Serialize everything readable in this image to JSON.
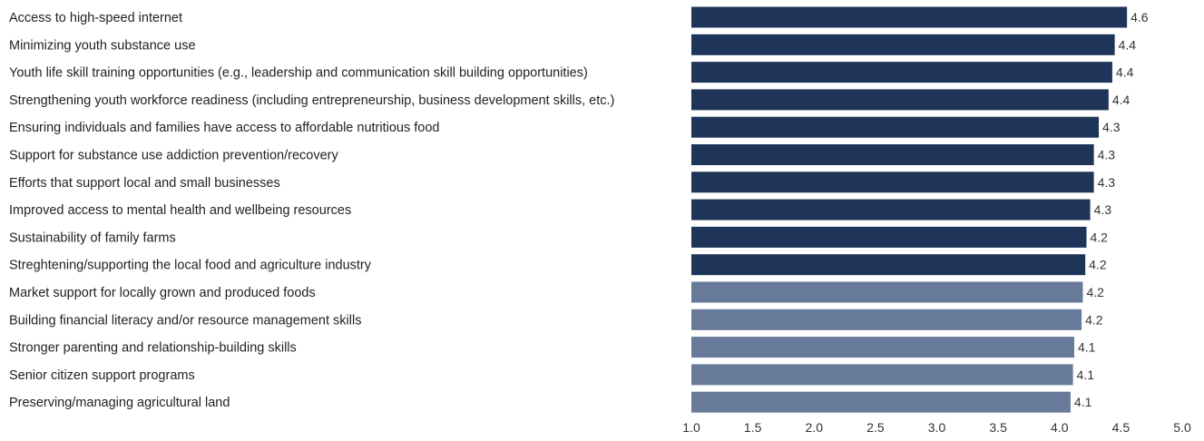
{
  "chart_data": {
    "type": "bar",
    "orientation": "horizontal",
    "categories": [
      "Access to high-speed internet",
      "Minimizing youth substance use",
      "Youth life skill training opportunities (e.g., leadership and communication skill building opportunities)",
      "Strengthening youth workforce readiness (including entrepreneurship, business development skills, etc.)",
      "Ensuring individuals and families have access to affordable nutritious food",
      "Support for substance use addiction prevention/recovery",
      "Efforts that support local and small businesses",
      "Improved access to mental health and wellbeing resources",
      "Sustainability of family farms",
      "Streghtening/supporting the local food and agriculture industry",
      "Market support for locally grown and produced foods",
      "Building financial literacy and/or resource management skills",
      "Stronger parenting and relationship-building skills",
      "Senior citizen support programs",
      "Preserving/managing agricultural land"
    ],
    "values": [
      4.55,
      4.45,
      4.43,
      4.4,
      4.32,
      4.28,
      4.28,
      4.25,
      4.22,
      4.21,
      4.19,
      4.18,
      4.12,
      4.11,
      4.09
    ],
    "value_labels": [
      "4.6",
      "4.4",
      "4.4",
      "4.4",
      "4.3",
      "4.3",
      "4.3",
      "4.3",
      "4.2",
      "4.2",
      "4.2",
      "4.2",
      "4.1",
      "4.1",
      "4.1"
    ],
    "bar_colors": [
      "#1f3459",
      "#1f3459",
      "#1f3459",
      "#1f3459",
      "#1f3459",
      "#1f3459",
      "#1f3459",
      "#1f3459",
      "#1f3459",
      "#1f3459",
      "#687a9a",
      "#687a9a",
      "#687a9a",
      "#687a9a",
      "#687a9a"
    ],
    "xlim": [
      1.0,
      5.0
    ],
    "xticks": [
      "1.0",
      "1.5",
      "2.0",
      "2.5",
      "3.0",
      "3.5",
      "4.0",
      "4.5",
      "5.0"
    ],
    "title": "",
    "xlabel": "",
    "ylabel": "",
    "grid": false,
    "legend": "none"
  }
}
